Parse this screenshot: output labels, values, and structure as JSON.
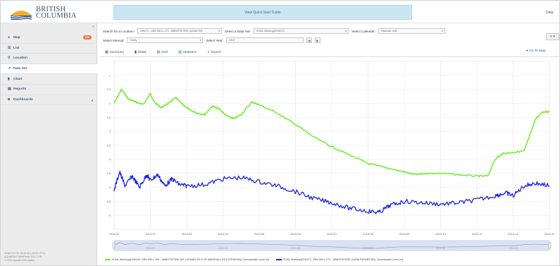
{
  "header": {
    "logo_line1": "BRITISH",
    "logo_line2": "COLUMBIA",
    "banner": "View Quick Start Guide",
    "data_link": "Data"
  },
  "sidebar": {
    "items": [
      {
        "label": "Map",
        "icon": "globe-icon",
        "badge": "999"
      },
      {
        "label": "List",
        "icon": "list-icon"
      },
      {
        "label": "Location",
        "icon": "pin-icon"
      },
      {
        "label": "Data Set",
        "icon": "line-chart-icon",
        "active": true
      },
      {
        "label": "Chart",
        "icon": "bar-chart-icon"
      },
      {
        "label": "Reports",
        "icon": "reports-icon"
      },
      {
        "label": "Dashboards",
        "icon": "dashboard-icon",
        "has_chevron": true
      }
    ],
    "footer": [
      "2016-FG-FW 15:39:42 (-08:00 UTC)",
      "AQUARIUS WebPortal 2017.2.98",
      "© 2016 Aquatic Informatics"
    ]
  },
  "filters": {
    "location_label": "Search for a Location:",
    "location_value": "OW272 - OBS WELL 272 - ABBOTSFORD (34336 FAR",
    "dataset_label": "Select a Data Set:",
    "dataset_value": "SCML.Working@OW272",
    "calendar_label": "Select Calendar:",
    "calendar_value": "Calendar Year",
    "interval_label": "Select Interval:",
    "interval_value": "Yearly",
    "year_label": "Select Year:",
    "year_value": "2015",
    "prev": "◀",
    "next": "▶"
  },
  "tabs": [
    {
      "label": "Summary",
      "icon": "table-icon"
    },
    {
      "label": "Chart",
      "icon": "bar-chart-icon",
      "active": true
    },
    {
      "label": "Grid",
      "icon": "grid-icon"
    },
    {
      "label": "Statistics",
      "icon": "statistics-icon"
    },
    {
      "label": "Export",
      "icon": "export-icon"
    }
  ],
  "goto_map": "Go To Map",
  "chart_data": {
    "type": "line",
    "title": "",
    "xlabel": "",
    "ylabel": "",
    "ylim": [
      6.5,
      0.5
    ],
    "y_inverted": true,
    "y_ticks": [
      "1",
      "1.5",
      "2",
      "2.5",
      "3",
      "3.5",
      "4",
      "4.5",
      "5",
      "5.5",
      "6"
    ],
    "x_ticks": [
      "2015-01",
      "2015-02",
      "2015-03",
      "2015-04",
      "2015-05",
      "2015-06",
      "2015-07",
      "2015-08",
      "2015-09",
      "2015-10",
      "2015-11",
      "2015-12",
      "2016-01"
    ],
    "navigator_ticks": [
      "2015-02",
      "2015-04",
      "2015-06",
      "2015-08",
      "2015-10",
      "2015-12"
    ],
    "series": [
      {
        "name": "SCML.Working@OW299, OBS WELL 299 – ABBOTSFORD (MT LEHMAN RD N OF MARSHALL RD EXTENSION), Groundwater Level (m)",
        "color": "#66ee22",
        "x": [
          0,
          0.2,
          0.4,
          0.6,
          0.8,
          1.0,
          1.1,
          1.3,
          1.5,
          1.7,
          1.9,
          2.1,
          2.3,
          2.5,
          2.7,
          2.9,
          3.1,
          3.3,
          3.5,
          3.8,
          4.0,
          4.5,
          5.0,
          5.5,
          6.0,
          6.5,
          7.0,
          7.5,
          8.0,
          8.3,
          8.6,
          9.0,
          9.5,
          10.0,
          10.3,
          10.5,
          10.7,
          11.0,
          11.3,
          11.5,
          11.6,
          11.8,
          12.0
        ],
        "y": [
          2.0,
          1.5,
          1.85,
          1.95,
          2.05,
          1.65,
          1.95,
          2.15,
          2.0,
          1.8,
          2.05,
          2.25,
          2.35,
          2.4,
          2.1,
          2.2,
          2.45,
          2.55,
          2.4,
          1.95,
          2.05,
          2.35,
          2.75,
          3.2,
          3.55,
          3.85,
          4.15,
          4.3,
          4.45,
          4.55,
          4.5,
          4.5,
          4.55,
          4.6,
          4.6,
          4.0,
          3.8,
          3.75,
          3.7,
          3.0,
          2.6,
          2.3,
          2.3
        ]
      },
      {
        "name": "SCML.Working@OW272, OBS WELL 272 – ABBOTSFORD (34336 FARMER RD), Groundwater Level (m)",
        "color": "#1a22e6",
        "x": [
          0,
          0.15,
          0.3,
          0.5,
          0.7,
          0.9,
          1.0,
          1.2,
          1.4,
          1.6,
          1.8,
          2.0,
          2.5,
          3.0,
          3.5,
          4.0,
          4.5,
          5.0,
          5.5,
          6.0,
          6.5,
          7.0,
          7.3,
          7.6,
          8.0,
          8.5,
          9.0,
          9.5,
          10.0,
          10.5,
          10.8,
          11.0,
          11.3,
          11.6,
          12.0
        ],
        "y": [
          5.1,
          4.45,
          4.95,
          4.6,
          5.0,
          4.55,
          4.75,
          4.55,
          4.95,
          4.7,
          4.9,
          4.95,
          4.9,
          4.7,
          4.65,
          4.8,
          4.95,
          5.15,
          5.4,
          5.55,
          5.75,
          5.85,
          5.9,
          5.65,
          5.5,
          5.55,
          5.6,
          5.55,
          5.45,
          5.3,
          5.2,
          5.3,
          4.95,
          4.85,
          4.95
        ]
      }
    ],
    "grid": true,
    "legend_position": "bottom"
  }
}
